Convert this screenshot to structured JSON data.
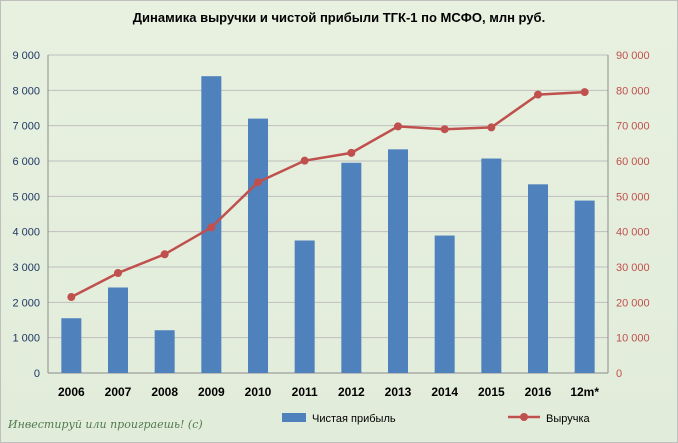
{
  "chart_data": {
    "type": "bar+line",
    "title": "Динамика выручки и чистой прибыли ТГК-1 по МСФО, млн руб.",
    "categories": [
      "2006",
      "2007",
      "2008",
      "2009",
      "2010",
      "2011",
      "2012",
      "2013",
      "2014",
      "2015",
      "2016",
      "12m*"
    ],
    "series": [
      {
        "name": "Чистая прибыль",
        "type": "bar",
        "axis": "left",
        "color": "#4f81bd",
        "values": [
          1550,
          2420,
          1210,
          8400,
          7200,
          3750,
          5950,
          6330,
          3890,
          6070,
          5340,
          4880
        ]
      },
      {
        "name": "Выручка",
        "type": "line",
        "axis": "right",
        "color": "#c0504d",
        "values": [
          21500,
          28300,
          33600,
          41200,
          54000,
          60100,
          62300,
          69800,
          69000,
          69500,
          78800,
          79500
        ]
      }
    ],
    "ylim_left": [
      0,
      9000
    ],
    "yticks_left": [
      "0",
      "1 000",
      "2 000",
      "3 000",
      "4 000",
      "5 000",
      "6 000",
      "7 000",
      "8 000",
      "9 000"
    ],
    "ylim_right": [
      0,
      90000
    ],
    "yticks_right": [
      "0",
      "10 000",
      "20 000",
      "30 000",
      "40 000",
      "50 000",
      "60 000",
      "70 000",
      "80 000",
      "90 000"
    ],
    "grid": true,
    "legend_position": "bottom"
  },
  "watermark": "Инвестируй или проиграешь! (с)"
}
